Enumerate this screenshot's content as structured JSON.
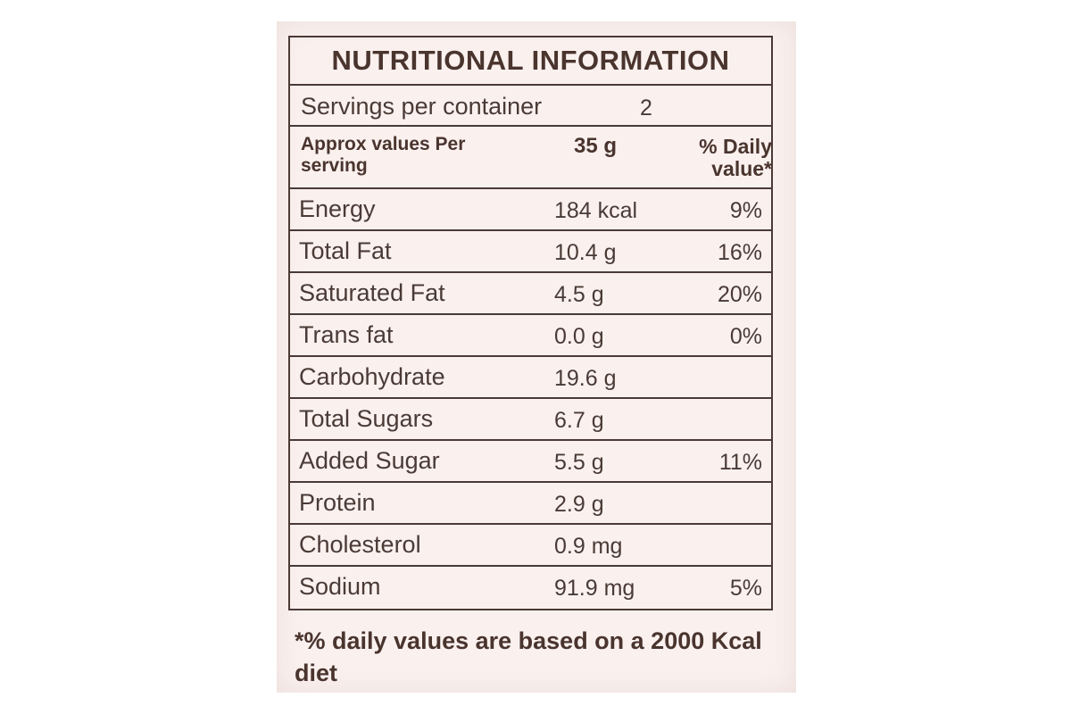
{
  "label": {
    "title": "NUTRITIONAL INFORMATION",
    "servings": {
      "label": "Servings per container",
      "value": "2"
    },
    "header": {
      "col1": "Approx values Per serving",
      "col2": "35 g",
      "col3": "% Daily value*"
    },
    "nutrients": [
      {
        "name": "Energy",
        "amount": "184 kcal",
        "dv": "9%"
      },
      {
        "name": "Total Fat",
        "amount": "10.4 g",
        "dv": "16%"
      },
      {
        "name": "Saturated Fat",
        "amount": "4.5 g",
        "dv": "20%"
      },
      {
        "name": "Trans fat",
        "amount": "0.0 g",
        "dv": "0%"
      },
      {
        "name": "Carbohydrate",
        "amount": "19.6 g",
        "dv": ""
      },
      {
        "name": "Total Sugars",
        "amount": "6.7 g",
        "dv": ""
      },
      {
        "name": "Added Sugar",
        "amount": "5.5 g",
        "dv": "11%"
      },
      {
        "name": "Protein",
        "amount": "2.9 g",
        "dv": ""
      },
      {
        "name": "Cholesterol",
        "amount": "0.9 mg",
        "dv": ""
      },
      {
        "name": "Sodium",
        "amount": "91.9 mg",
        "dv": "5%"
      }
    ],
    "footnote": "*% daily values are based on a 2000 Kcal diet"
  },
  "colors": {
    "ink": "#4a3a35",
    "panel": "#faf1ef",
    "background": "#ffffff"
  }
}
